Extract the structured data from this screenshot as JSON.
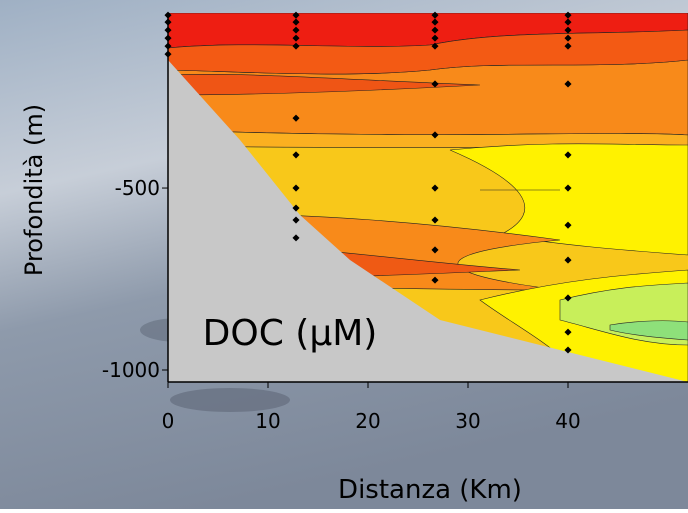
{
  "chart_data": {
    "type": "scatter",
    "annotation": "DOC (μM)",
    "x_label": "Distanza (Km)",
    "y_label": "Profondità (m)",
    "x": [
      0,
      0,
      0,
      0,
      0,
      0,
      12.8,
      12.8,
      12.8,
      12.8,
      12.8,
      12.8,
      12.8,
      12.8,
      12.8,
      12.8,
      12.8,
      26.7,
      26.7,
      26.7,
      26.7,
      26.7,
      26.7,
      26.7,
      26.7,
      26.7,
      26.7,
      26.7,
      40,
      40,
      40,
      40,
      40,
      40,
      40,
      40,
      40,
      40,
      40,
      40,
      40
    ],
    "values": [
      -25,
      -44,
      -66,
      -88,
      -110,
      -132,
      -25,
      -44,
      -66,
      -88,
      -110,
      -308,
      -409,
      -500,
      -555,
      -588,
      -637,
      -25,
      -44,
      -66,
      -88,
      -110,
      -214,
      -354,
      -500,
      -588,
      -670,
      -753,
      -25,
      -44,
      -66,
      -88,
      -110,
      -214,
      -409,
      -500,
      -602,
      -698,
      -802,
      -896,
      -945
    ],
    "color": "#000000",
    "xlim": [
      0,
      52
    ],
    "xticks": [
      0,
      10,
      20,
      30,
      40
    ],
    "ylim": [
      -1033,
      -19
    ],
    "yticks": [
      -500,
      -1000
    ]
  }
}
